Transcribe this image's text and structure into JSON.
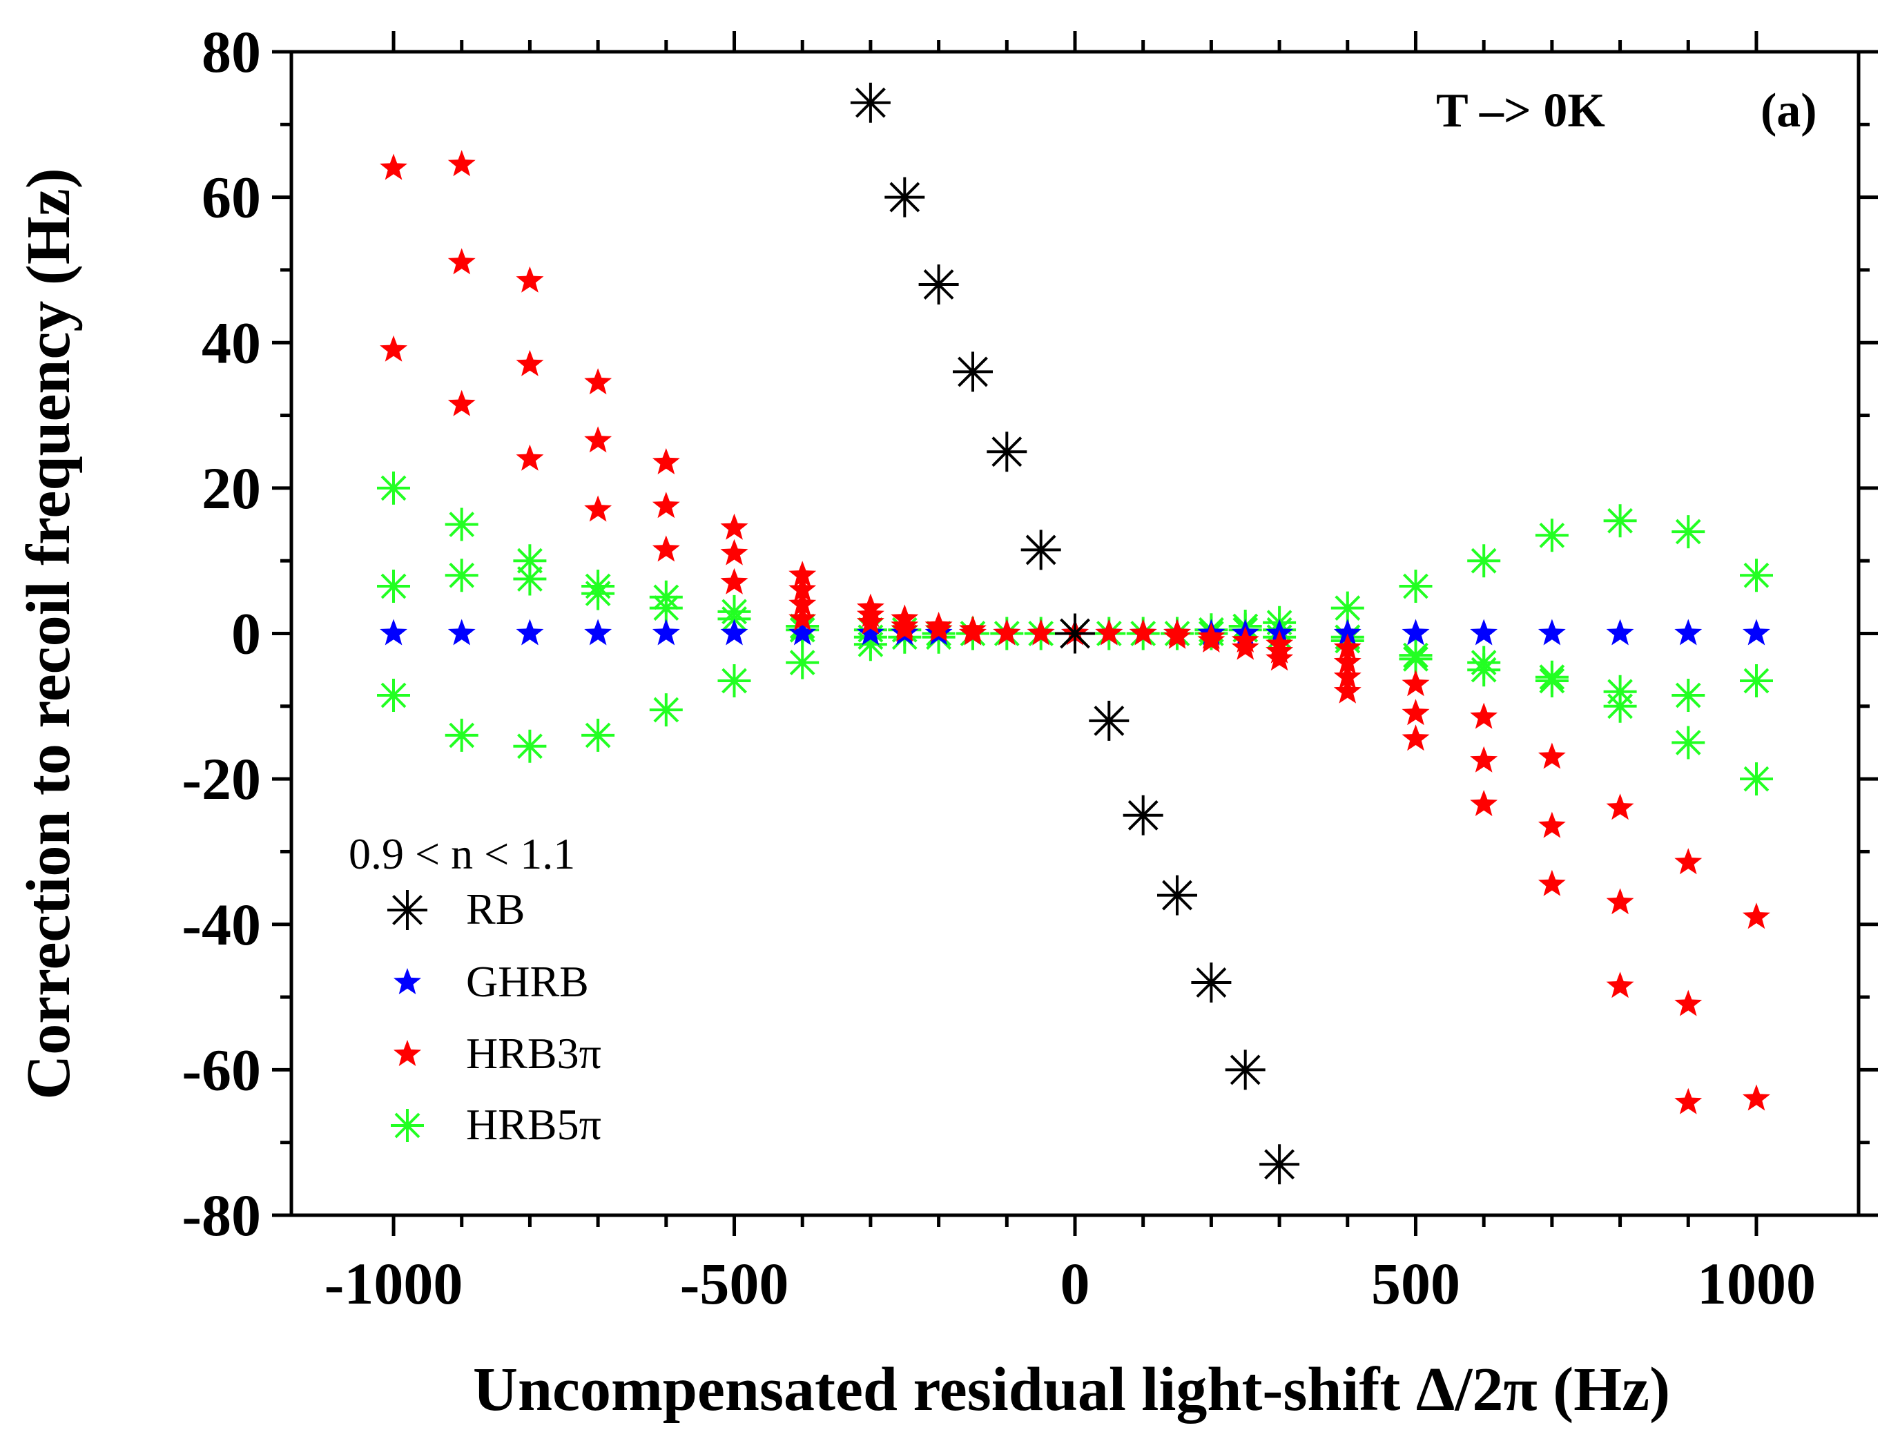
{
  "chart_data": {
    "type": "scatter",
    "xlabel": "Uncompensated residual  light-shift Δ/2π (Hz)",
    "ylabel": "Correction to recoil frequency (Hz)",
    "xlim": [
      -1150,
      1150
    ],
    "ylim": [
      -80,
      80
    ],
    "x_ticks": [
      -1000,
      -500,
      0,
      500,
      1000
    ],
    "x_tick_labels": [
      "-1000",
      "-500",
      "0",
      "500",
      "1000"
    ],
    "y_ticks": [
      -80,
      -60,
      -40,
      -20,
      0,
      20,
      40,
      60,
      80
    ],
    "y_tick_labels": [
      "-80",
      "-60",
      "-40",
      "-20",
      "0",
      "20",
      "40",
      "60",
      "80"
    ],
    "grid": false,
    "annotations": [
      "T –> 0K",
      "(a)"
    ],
    "legend": {
      "placement": "bottom-left",
      "title": "0.9 < n < 1.1"
    },
    "series": [
      {
        "name": "RB",
        "marker": "asterisk",
        "color": "#000000",
        "points": [
          [
            -300,
            73
          ],
          [
            -250,
            60
          ],
          [
            -200,
            48
          ],
          [
            -150,
            36
          ],
          [
            -100,
            25
          ],
          [
            -50,
            11.5
          ],
          [
            0,
            0
          ],
          [
            50,
            -12
          ],
          [
            100,
            -25
          ],
          [
            150,
            -36
          ],
          [
            200,
            -48
          ],
          [
            250,
            -60
          ],
          [
            300,
            -73
          ]
        ]
      },
      {
        "name": "GHRB",
        "marker": "star",
        "color": "#0000ff",
        "points": [
          [
            -1000,
            0
          ],
          [
            -900,
            0
          ],
          [
            -800,
            0
          ],
          [
            -700,
            0
          ],
          [
            -600,
            0
          ],
          [
            -500,
            0
          ],
          [
            -400,
            0
          ],
          [
            -300,
            0
          ],
          [
            -250,
            0
          ],
          [
            -200,
            0
          ],
          [
            -150,
            0
          ],
          [
            -100,
            0
          ],
          [
            -50,
            0
          ],
          [
            0,
            0
          ],
          [
            50,
            0
          ],
          [
            100,
            0
          ],
          [
            150,
            0
          ],
          [
            200,
            0
          ],
          [
            250,
            0
          ],
          [
            300,
            0
          ],
          [
            400,
            0
          ],
          [
            500,
            0
          ],
          [
            600,
            0
          ],
          [
            700,
            0
          ],
          [
            800,
            0
          ],
          [
            900,
            0
          ],
          [
            1000,
            0
          ]
        ]
      },
      {
        "name": "HRB3π",
        "marker": "star",
        "color": "#ff0000",
        "points": [
          [
            -1000,
            64
          ],
          [
            -1000,
            39
          ],
          [
            -900,
            64.5
          ],
          [
            -900,
            51
          ],
          [
            -900,
            31.5
          ],
          [
            -800,
            48.5
          ],
          [
            -800,
            37
          ],
          [
            -800,
            24
          ],
          [
            -700,
            34.5
          ],
          [
            -700,
            26.5
          ],
          [
            -700,
            17
          ],
          [
            -600,
            23.5
          ],
          [
            -600,
            17.5
          ],
          [
            -600,
            11.5
          ],
          [
            -500,
            14.5
          ],
          [
            -500,
            11
          ],
          [
            -500,
            7
          ],
          [
            -400,
            8
          ],
          [
            -400,
            6
          ],
          [
            -400,
            4
          ],
          [
            -400,
            2
          ],
          [
            -300,
            3.5
          ],
          [
            -300,
            2.5
          ],
          [
            -300,
            1.5
          ],
          [
            -250,
            2
          ],
          [
            -250,
            1
          ],
          [
            -250,
            0.5
          ],
          [
            -200,
            1
          ],
          [
            -200,
            0.5
          ],
          [
            -150,
            0.5
          ],
          [
            -150,
            0
          ],
          [
            -100,
            0
          ],
          [
            -50,
            0
          ],
          [
            0,
            0
          ],
          [
            50,
            0
          ],
          [
            100,
            0
          ],
          [
            150,
            0
          ],
          [
            150,
            -0.5
          ],
          [
            200,
            -0.5
          ],
          [
            200,
            -1
          ],
          [
            250,
            -1
          ],
          [
            250,
            -2
          ],
          [
            300,
            -1.5
          ],
          [
            300,
            -2.5
          ],
          [
            300,
            -3.5
          ],
          [
            400,
            -2
          ],
          [
            400,
            -4
          ],
          [
            400,
            -6
          ],
          [
            400,
            -8
          ],
          [
            500,
            -7
          ],
          [
            500,
            -11
          ],
          [
            500,
            -14.5
          ],
          [
            600,
            -11.5
          ],
          [
            600,
            -17.5
          ],
          [
            600,
            -23.5
          ],
          [
            700,
            -17
          ],
          [
            700,
            -26.5
          ],
          [
            700,
            -34.5
          ],
          [
            800,
            -24
          ],
          [
            800,
            -37
          ],
          [
            800,
            -48.5
          ],
          [
            900,
            -31.5
          ],
          [
            900,
            -51
          ],
          [
            900,
            -64.5
          ],
          [
            1000,
            -39
          ],
          [
            1000,
            -64
          ]
        ]
      },
      {
        "name": "HRB5π",
        "marker": "asterisk",
        "color": "#22ff22",
        "points": [
          [
            -1000,
            20
          ],
          [
            -1000,
            6.5
          ],
          [
            -1000,
            -8.5
          ],
          [
            -900,
            15
          ],
          [
            -900,
            8
          ],
          [
            -900,
            -14
          ],
          [
            -800,
            10
          ],
          [
            -800,
            7.5
          ],
          [
            -800,
            -15.5
          ],
          [
            -700,
            6.5
          ],
          [
            -700,
            5.5
          ],
          [
            -700,
            -14
          ],
          [
            -600,
            5
          ],
          [
            -600,
            3.5
          ],
          [
            -600,
            -10.5
          ],
          [
            -500,
            3
          ],
          [
            -500,
            2
          ],
          [
            -500,
            -6.5
          ],
          [
            -400,
            1
          ],
          [
            -400,
            0.5
          ],
          [
            -400,
            -4
          ],
          [
            -300,
            0.5
          ],
          [
            -300,
            -0.5
          ],
          [
            -300,
            -1.5
          ],
          [
            -250,
            0.5
          ],
          [
            -250,
            -0.5
          ],
          [
            -200,
            0
          ],
          [
            -200,
            -0.5
          ],
          [
            -150,
            0
          ],
          [
            -100,
            0
          ],
          [
            -50,
            0
          ],
          [
            0,
            0
          ],
          [
            50,
            0
          ],
          [
            100,
            0
          ],
          [
            150,
            0
          ],
          [
            200,
            0
          ],
          [
            200,
            0.5
          ],
          [
            250,
            0.5
          ],
          [
            250,
            1
          ],
          [
            300,
            0.5
          ],
          [
            300,
            1.5
          ],
          [
            300,
            -0.5
          ],
          [
            400,
            3.5
          ],
          [
            400,
            -0.5
          ],
          [
            400,
            -1
          ],
          [
            500,
            6.5
          ],
          [
            500,
            -3
          ],
          [
            500,
            -3.5
          ],
          [
            600,
            10
          ],
          [
            600,
            -4
          ],
          [
            600,
            -5
          ],
          [
            700,
            13.5
          ],
          [
            700,
            -6
          ],
          [
            700,
            -6.5
          ],
          [
            800,
            15.5
          ],
          [
            800,
            -8
          ],
          [
            800,
            -10
          ],
          [
            900,
            14
          ],
          [
            900,
            -8.5
          ],
          [
            900,
            -15
          ],
          [
            1000,
            8
          ],
          [
            1000,
            -6.5
          ],
          [
            1000,
            -20
          ]
        ]
      }
    ]
  }
}
